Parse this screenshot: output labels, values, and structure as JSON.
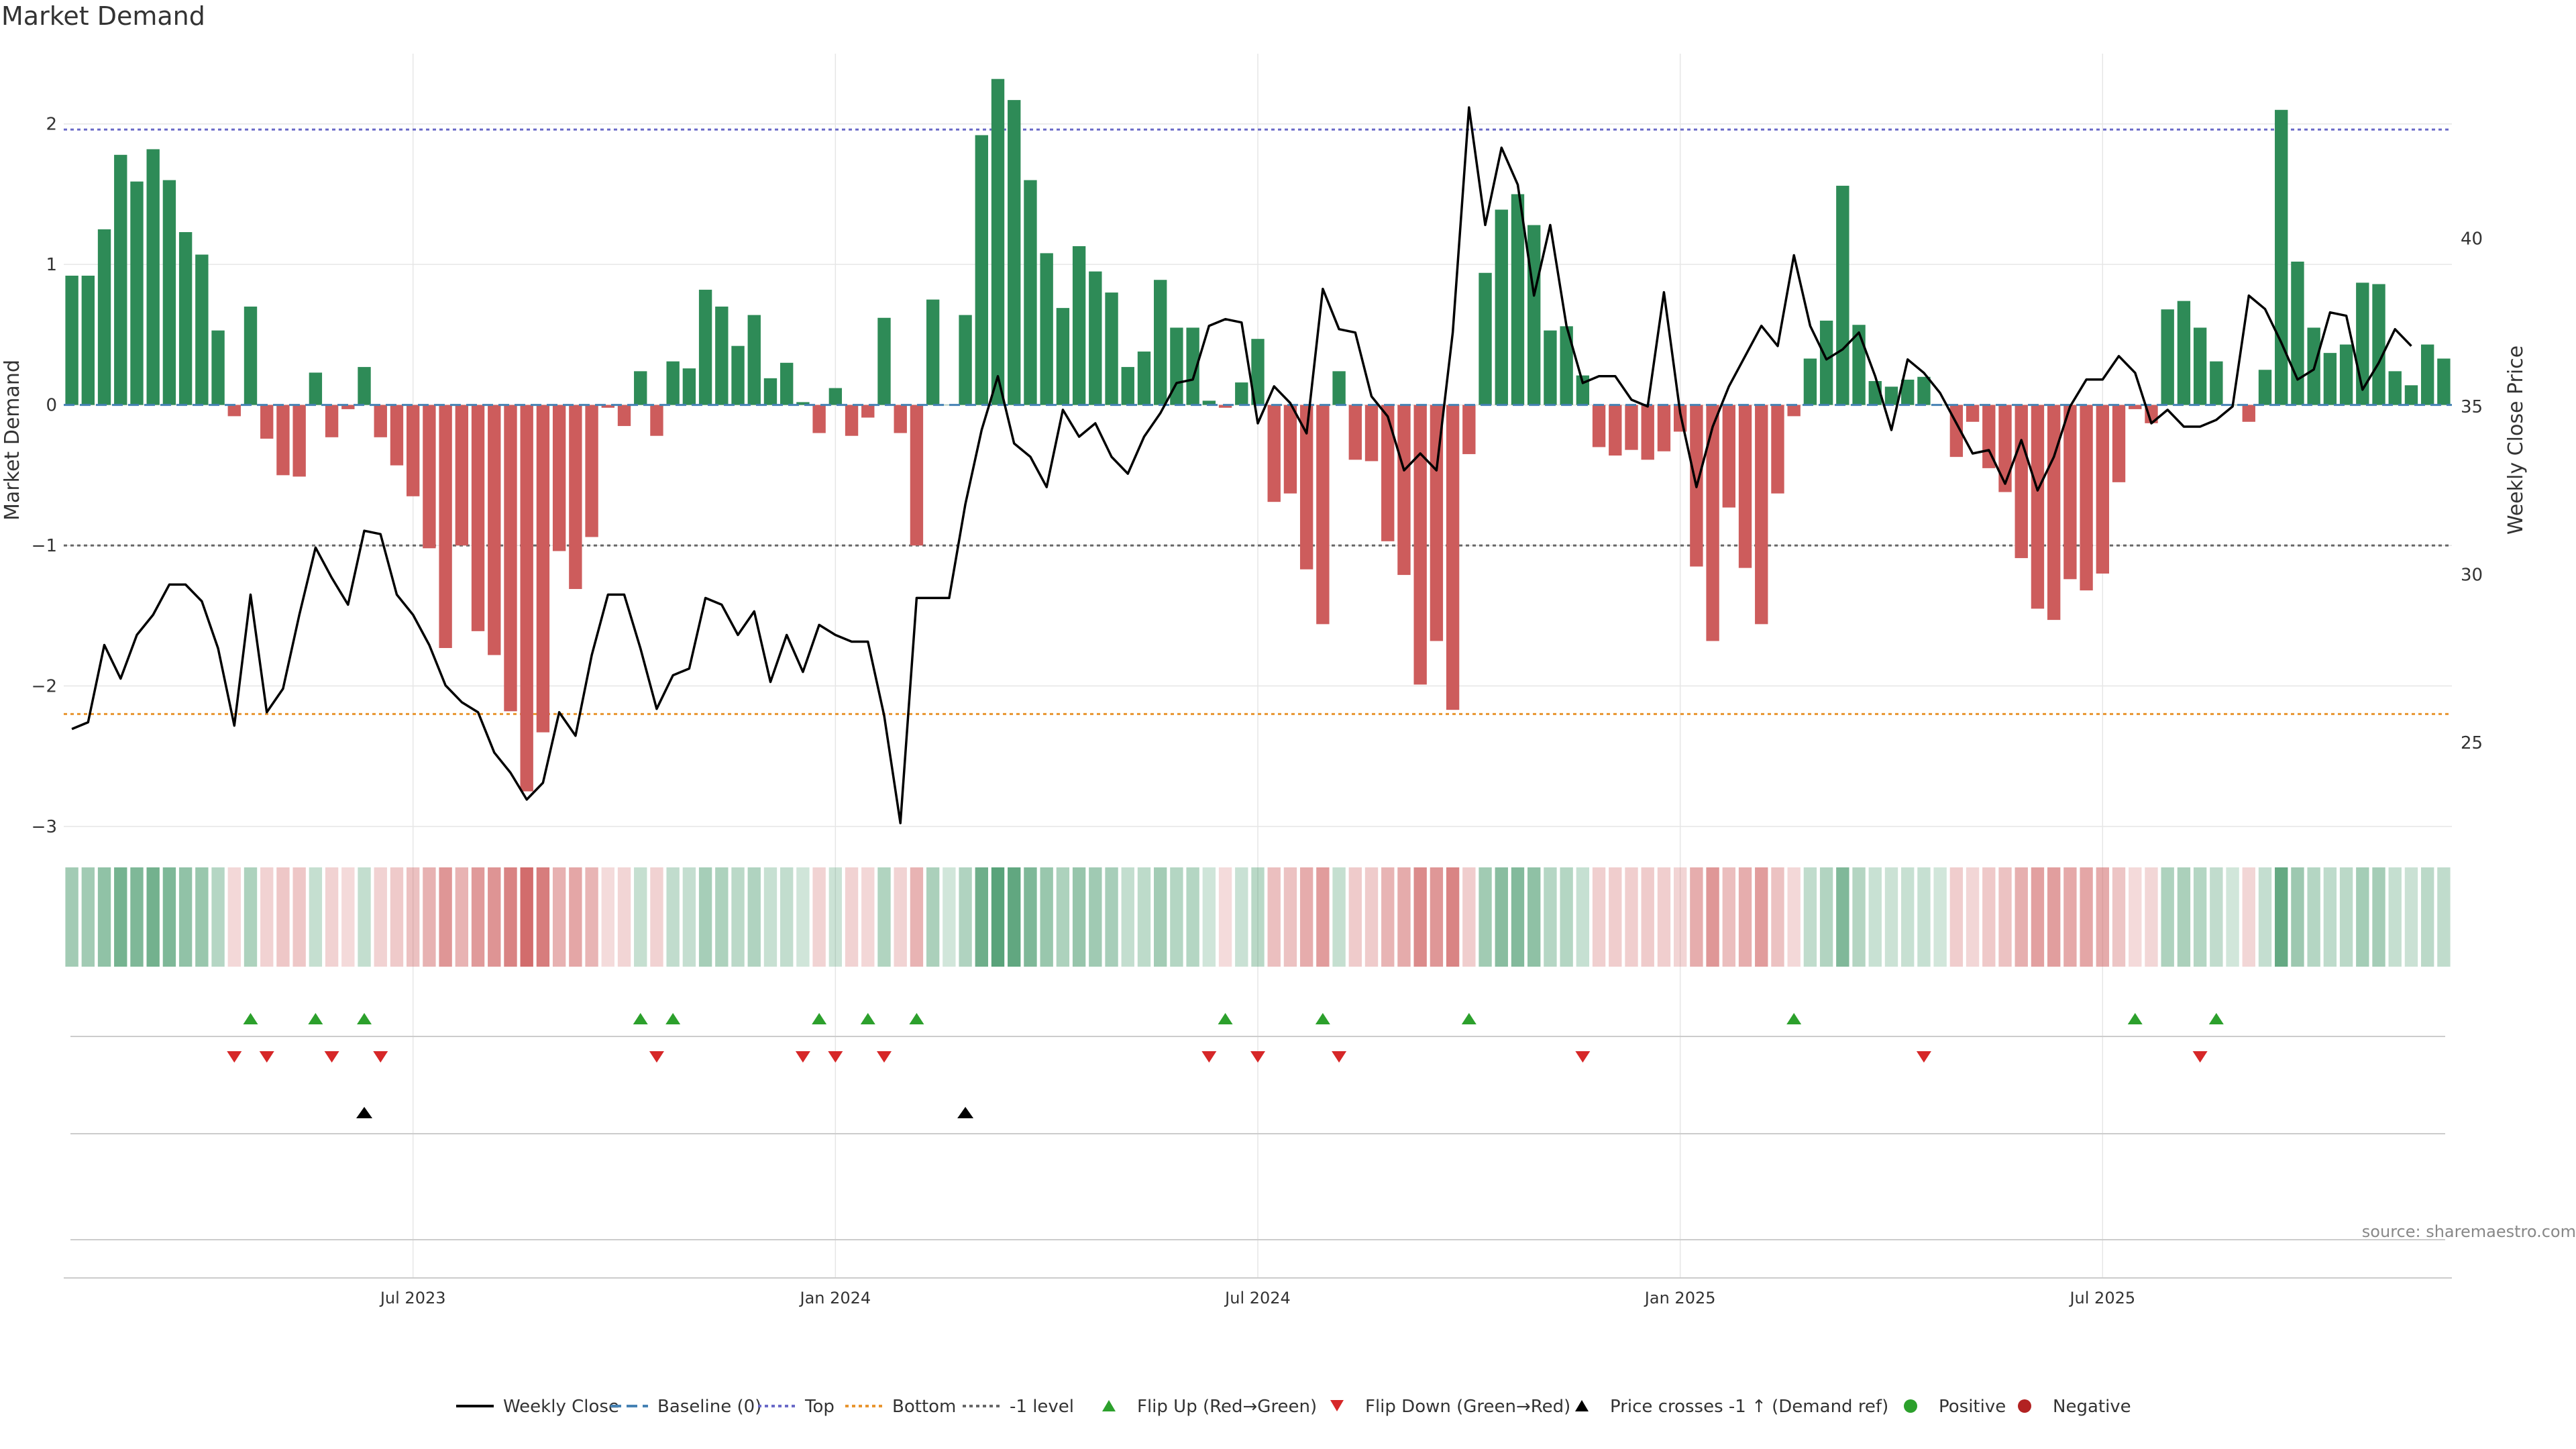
{
  "chart_data": {
    "type": "bar",
    "title": "Market Demand",
    "ylabel": "Market Demand",
    "y2label": "Weekly Close Price",
    "ylim": [
      -3,
      2.5
    ],
    "y2lim": [
      22.5,
      45.5
    ],
    "yticks": [
      2,
      1,
      0,
      -1,
      -2,
      -3
    ],
    "yticklabels": [
      "2",
      "1",
      "0",
      "−1",
      "−2",
      "−3"
    ],
    "y2ticks": [
      40,
      35,
      30,
      25
    ],
    "xticks": [
      {
        "label": "Jul 2023",
        "index": 21
      },
      {
        "label": "Jan 2024",
        "index": 47
      },
      {
        "label": "Jul 2024",
        "index": 73
      },
      {
        "label": "Jan 2025",
        "index": 99
      },
      {
        "label": "Jul 2025",
        "index": 125
      }
    ],
    "reference_lines": {
      "top": 1.96,
      "bottom": -2.2,
      "baseline": 0,
      "minus_one": -1
    },
    "demand": [
      0.92,
      0.92,
      1.25,
      1.78,
      1.59,
      1.82,
      1.6,
      1.23,
      1.07,
      0.53,
      -0.08,
      0.7,
      -0.24,
      -0.5,
      -0.51,
      0.23,
      -0.23,
      -0.03,
      0.27,
      -0.23,
      -0.43,
      -0.65,
      -1.02,
      -1.73,
      -1.0,
      -1.61,
      -1.78,
      -2.18,
      -2.75,
      -2.33,
      -1.04,
      -1.31,
      -0.94,
      -0.02,
      -0.15,
      0.24,
      -0.22,
      0.31,
      0.26,
      0.82,
      0.7,
      0.42,
      0.64,
      0.19,
      0.3,
      0.02,
      -0.2,
      0.12,
      -0.22,
      -0.09,
      0.62,
      -0.2,
      -1.0,
      0.75,
      0.0,
      0.64,
      1.92,
      2.32,
      2.17,
      1.6,
      1.08,
      0.69,
      1.13,
      0.95,
      0.8,
      0.27,
      0.38,
      0.89,
      0.55,
      0.55,
      0.03,
      -0.02,
      0.16,
      0.47,
      -0.69,
      -0.63,
      -1.17,
      -1.56,
      0.24,
      -0.39,
      -0.4,
      -0.97,
      -1.21,
      -1.99,
      -1.68,
      -2.17,
      -0.35,
      0.94,
      1.39,
      1.5,
      1.28,
      0.53,
      0.56,
      0.21,
      -0.3,
      -0.36,
      -0.32,
      -0.39,
      -0.33,
      -0.19,
      -1.15,
      -1.68,
      -0.73,
      -1.16,
      -1.56,
      -0.63,
      -0.08,
      0.33,
      0.6,
      1.56,
      0.57,
      0.17,
      0.13,
      0.18,
      0.2,
      0.0,
      -0.37,
      -0.12,
      -0.45,
      -0.62,
      -1.09,
      -1.45,
      -1.53,
      -1.24,
      -1.32,
      -1.2,
      -0.55,
      -0.03,
      -0.13,
      0.68,
      0.74,
      0.55,
      0.31,
      0.0,
      -0.12,
      0.25,
      2.1,
      1.02,
      0.55,
      0.37,
      0.43,
      0.87,
      0.86,
      0.24,
      0.14,
      0.43,
      0.33
    ],
    "close": [
      25.4,
      25.6,
      27.9,
      26.9,
      28.2,
      28.8,
      29.7,
      29.7,
      29.2,
      27.8,
      25.5,
      29.4,
      25.9,
      26.6,
      28.8,
      30.8,
      29.9,
      29.1,
      31.3,
      31.2,
      29.4,
      28.8,
      27.9,
      26.7,
      26.2,
      25.9,
      24.7,
      24.1,
      23.3,
      23.8,
      25.9,
      25.2,
      27.6,
      29.4,
      29.4,
      27.8,
      26.0,
      27.0,
      27.2,
      29.3,
      29.1,
      28.2,
      28.9,
      26.8,
      28.2,
      27.1,
      28.5,
      28.2,
      28.0,
      28.0,
      25.8,
      22.6,
      29.3,
      29.3,
      29.3,
      32.1,
      34.3,
      35.9,
      33.9,
      33.5,
      32.6,
      34.9,
      34.1,
      34.5,
      33.5,
      33.0,
      34.1,
      34.8,
      35.7,
      35.8,
      37.4,
      37.6,
      37.5,
      34.5,
      35.6,
      35.1,
      34.2,
      38.5,
      37.3,
      37.2,
      35.3,
      34.7,
      33.1,
      33.6,
      33.1,
      37.2,
      43.9,
      40.4,
      42.7,
      41.6,
      38.3,
      40.4,
      37.4,
      35.7,
      35.9,
      35.9,
      35.2,
      35.0,
      38.4,
      34.8,
      32.6,
      34.4,
      35.6,
      36.5,
      37.4,
      36.8,
      39.5,
      37.4,
      36.4,
      36.7,
      37.2,
      35.9,
      34.3,
      36.4,
      36.0,
      35.4,
      34.5,
      33.6,
      33.7,
      32.7,
      34.0,
      32.5,
      33.5,
      35.0,
      35.8,
      35.8,
      36.5,
      36.0,
      34.5,
      34.9,
      34.4,
      34.4,
      34.6,
      35.0,
      38.3,
      37.9,
      36.9,
      35.8,
      36.1,
      37.8,
      37.7,
      35.5,
      36.3,
      37.3,
      36.8
    ],
    "flip_up_indices": [
      11,
      15,
      18,
      35,
      37,
      46,
      49,
      52,
      71,
      77,
      86,
      106,
      127,
      132
    ],
    "flip_down_indices": [
      10,
      12,
      16,
      19,
      36,
      45,
      47,
      50,
      70,
      73,
      78,
      93,
      114,
      131
    ],
    "price_cross_indices": [
      18,
      55
    ],
    "legend": [
      "Weekly Close",
      "Baseline (0)",
      "Top",
      "Bottom",
      "-1 level",
      "Flip Up (Red→Green)",
      "Flip Down (Green→Red)",
      "Price crosses -1 ↑ (Demand ref)",
      "Positive",
      "Negative"
    ]
  },
  "colors": {
    "positive": "#2e8b57",
    "negative": "#cd5c5c",
    "close": "#000000",
    "baseline": "#4682b4",
    "top": "#6a6ac8",
    "bottom": "#e8952f",
    "minus_one": "#666666",
    "flip_up": "#2ca02c",
    "flip_down": "#d62728",
    "cross": "#000000",
    "positive_dot": "#2ca02c",
    "negative_dot": "#b22222",
    "grid": "#e6e6e6",
    "axis_text": "#333333"
  },
  "source": "source: sharemaestro.com"
}
